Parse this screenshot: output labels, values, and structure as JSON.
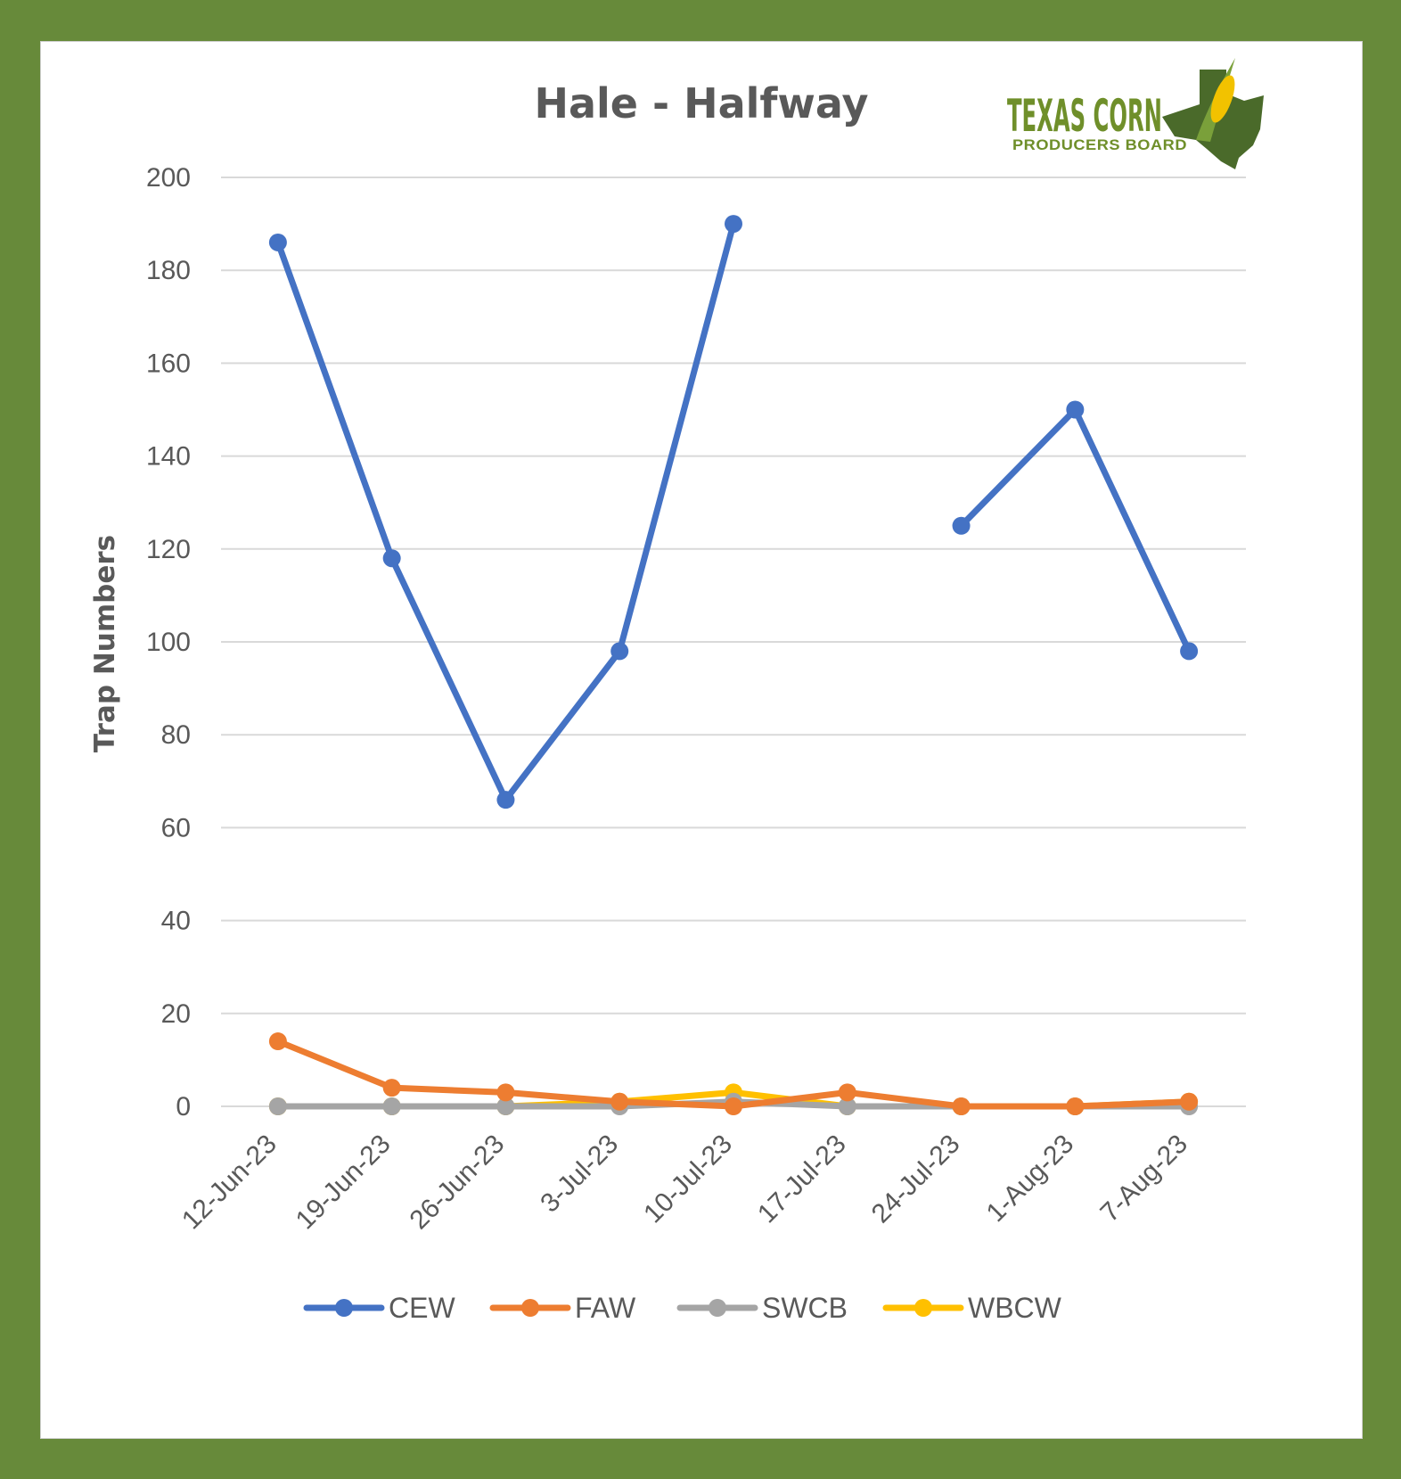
{
  "logo": {
    "line1": "TEXAS CORN",
    "line2": "PRODUCERS BOARD"
  },
  "colors": {
    "frame": "#678a3a",
    "gridline": "#d9d9d9",
    "text": "#595959",
    "logo": "#6f8f2a"
  },
  "chart_data": {
    "type": "line",
    "title": "Hale - Halfway",
    "xlabel": "",
    "ylabel": "Trap Numbers",
    "ylim": [
      0,
      200
    ],
    "yticks": [
      0,
      20,
      40,
      60,
      80,
      100,
      120,
      140,
      160,
      180,
      200
    ],
    "grid": true,
    "legend": "bottom",
    "categories": [
      "12-Jun-23",
      "19-Jun-23",
      "26-Jun-23",
      "3-Jul-23",
      "10-Jul-23",
      "17-Jul-23",
      "24-Jul-23",
      "1-Aug-23",
      "7-Aug-23"
    ],
    "series": [
      {
        "name": "CEW",
        "color": "#4472c4",
        "values": [
          186,
          118,
          66,
          98,
          190,
          null,
          125,
          150,
          98
        ]
      },
      {
        "name": "FAW",
        "color": "#ed7d31",
        "values": [
          14,
          4,
          3,
          1,
          0,
          3,
          0,
          0,
          1
        ]
      },
      {
        "name": "SWCB",
        "color": "#a5a5a5",
        "values": [
          0,
          0,
          0,
          0,
          1,
          0,
          0,
          0,
          0
        ]
      },
      {
        "name": "WBCW",
        "color": "#ffc000",
        "values": [
          0,
          0,
          0,
          1,
          3,
          0,
          0,
          0,
          1
        ]
      }
    ]
  }
}
